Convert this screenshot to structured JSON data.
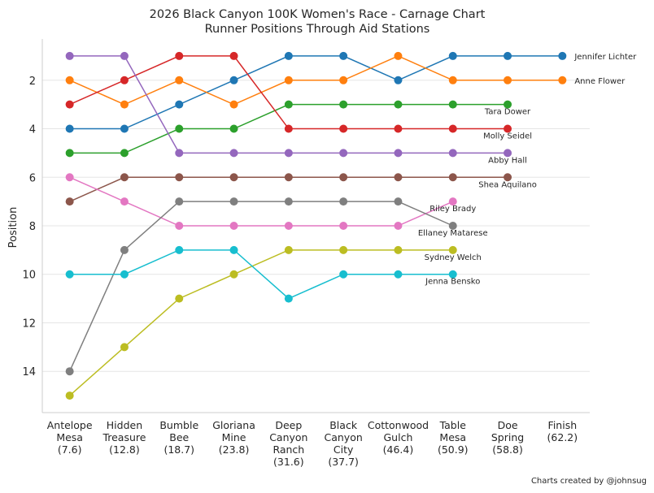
{
  "chart_data": {
    "type": "line",
    "title": "2026 Black Canyon 100K Women's Race - Carnage Chart",
    "subtitle": "Runner Positions Through Aid Stations",
    "y_label": "Position",
    "footer": "Charts created by @johnsug",
    "categories": [
      "Antelope\nMesa\n(7.6)",
      "Hidden\nTreasure\n(12.8)",
      "Bumble\nBee\n(18.7)",
      "Gloriana\nMine\n(23.8)",
      "Deep\nCanyon\nRanch\n(31.6)",
      "Black\nCanyon\nCity\n(37.7)",
      "Cottonwood\nGulch\n(46.4)",
      "Table\nMesa\n(50.9)",
      "Doe\nSpring\n(58.8)",
      "Finish\n(62.2)"
    ],
    "ylim": [
      15.7,
      0.3
    ],
    "yticks": [
      2,
      4,
      6,
      8,
      10,
      12,
      14
    ],
    "grid": true,
    "series": [
      {
        "name": "Jennifer Lichter",
        "color": "#1f77b4",
        "values": [
          4,
          4,
          3,
          2,
          1,
          1,
          2,
          1,
          1,
          1
        ]
      },
      {
        "name": "Anne Flower",
        "color": "#ff7f0e",
        "values": [
          2,
          3,
          2,
          3,
          2,
          2,
          1,
          2,
          2,
          2
        ]
      },
      {
        "name": "Tara Dower",
        "color": "#2ca02c",
        "values": [
          5,
          5,
          4,
          4,
          3,
          3,
          3,
          3,
          3,
          null
        ]
      },
      {
        "name": "Molly Seidel",
        "color": "#d62728",
        "values": [
          3,
          2,
          1,
          1,
          4,
          4,
          4,
          4,
          4,
          null
        ]
      },
      {
        "name": "Abby Hall",
        "color": "#9467bd",
        "values": [
          1,
          1,
          5,
          5,
          5,
          5,
          5,
          5,
          5,
          null
        ]
      },
      {
        "name": "Shea Aquilano",
        "color": "#8c564b",
        "values": [
          7,
          6,
          6,
          6,
          6,
          6,
          6,
          6,
          6,
          null
        ]
      },
      {
        "name": "Riley Brady",
        "color": "#e377c2",
        "values": [
          6,
          7,
          8,
          8,
          8,
          8,
          8,
          7,
          null,
          null
        ]
      },
      {
        "name": "Ellaney Matarese",
        "color": "#7f7f7f",
        "values": [
          14,
          9,
          7,
          7,
          7,
          7,
          7,
          8,
          null,
          null
        ]
      },
      {
        "name": "Sydney Welch",
        "color": "#bcbd22",
        "values": [
          15,
          13,
          11,
          10,
          9,
          9,
          9,
          9,
          null,
          null
        ]
      },
      {
        "name": "Jenna Bensko",
        "color": "#17becf",
        "values": [
          10,
          10,
          9,
          9,
          11,
          10,
          10,
          10,
          null,
          null
        ]
      }
    ]
  }
}
